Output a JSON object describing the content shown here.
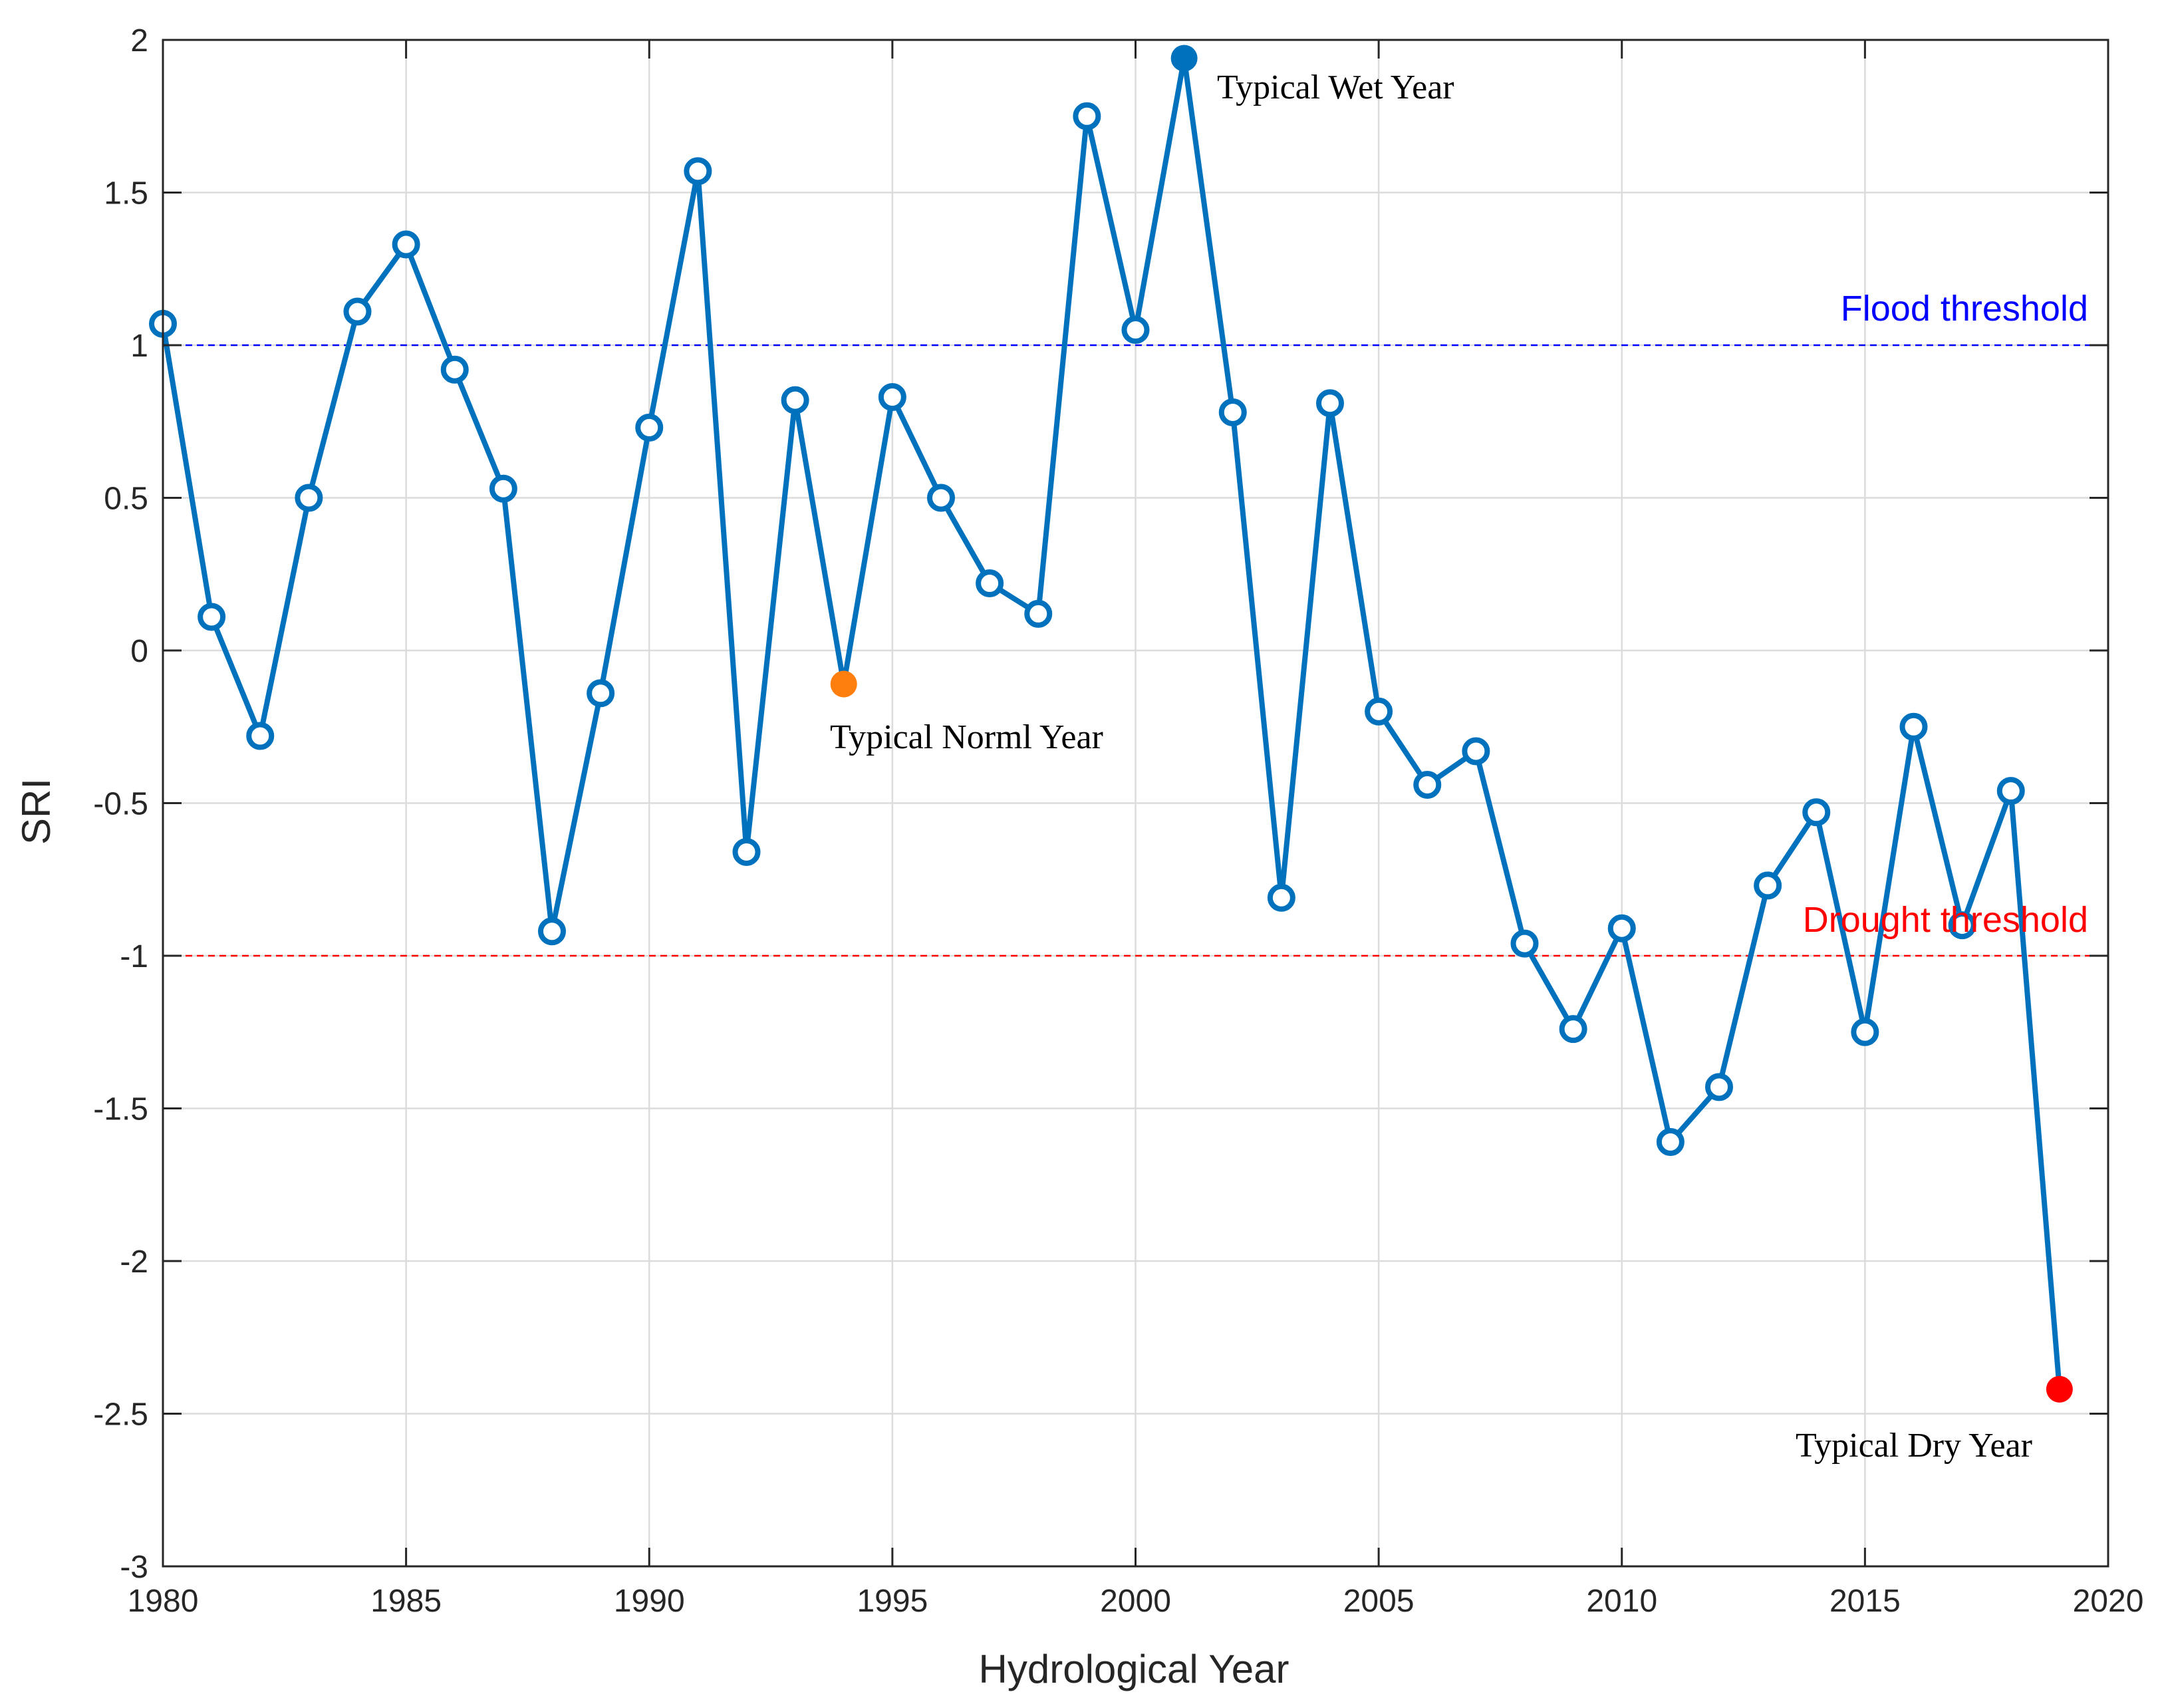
{
  "chart_data": {
    "type": "line",
    "xlabel": "Hydrological Year",
    "ylabel": "SRI",
    "xlim": [
      1980,
      2020
    ],
    "ylim": [
      -3,
      2
    ],
    "xticks": [
      1980,
      1985,
      1990,
      1995,
      2000,
      2005,
      2010,
      2015,
      2020
    ],
    "yticks": [
      -3,
      -2.5,
      -2,
      -1.5,
      -1,
      -0.5,
      0,
      0.5,
      1,
      1.5,
      2
    ],
    "grid": true,
    "series": [
      {
        "name": "SRI",
        "color": "#0072BD",
        "marker": "open-circle",
        "x": [
          1980,
          1981,
          1982,
          1983,
          1984,
          1985,
          1986,
          1987,
          1988,
          1989,
          1990,
          1991,
          1992,
          1993,
          1994,
          1995,
          1996,
          1997,
          1998,
          1999,
          2000,
          2001,
          2002,
          2003,
          2004,
          2005,
          2006,
          2007,
          2008,
          2009,
          2010,
          2011,
          2012,
          2013,
          2014,
          2015,
          2016,
          2017,
          2018,
          2019
        ],
        "y": [
          1.07,
          0.11,
          -0.28,
          0.5,
          1.11,
          1.33,
          0.92,
          0.53,
          -0.92,
          -0.14,
          0.73,
          1.57,
          -0.66,
          0.82,
          -0.11,
          0.83,
          0.5,
          0.22,
          0.12,
          1.75,
          1.05,
          1.94,
          0.78,
          -0.81,
          0.81,
          -0.2,
          -0.44,
          -0.33,
          -0.96,
          -1.24,
          -0.91,
          -1.61,
          -1.43,
          -0.77,
          -0.53,
          -1.25,
          -0.25,
          -0.9,
          -0.46,
          -2.42
        ]
      }
    ],
    "thresholds": [
      {
        "name": "Flood threshold",
        "value": 1,
        "color": "#0000FF"
      },
      {
        "name": "Drought threshold",
        "value": -1,
        "color": "#FF0000"
      }
    ],
    "highlights": [
      {
        "label": "Typical Wet Year",
        "x": 2001,
        "y": 1.94,
        "color": "#0072BD"
      },
      {
        "label": "Typical Norml Year",
        "x": 1994,
        "y": -0.11,
        "color": "#FF7F0E"
      },
      {
        "label": "Typical Dry Year",
        "x": 2019,
        "y": -2.42,
        "color": "#FF0000"
      }
    ]
  }
}
